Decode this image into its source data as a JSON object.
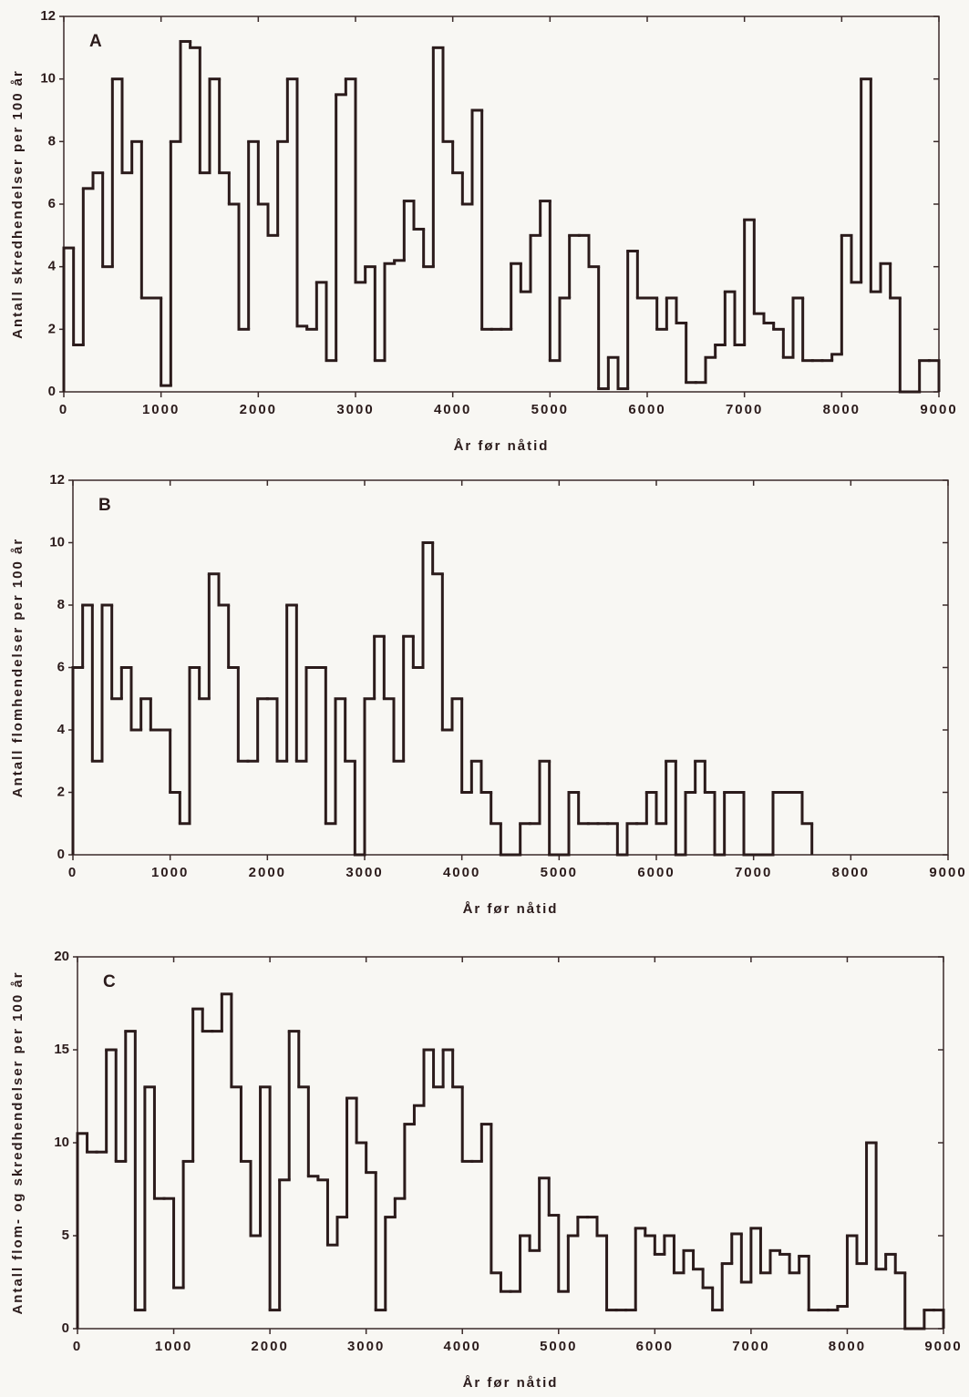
{
  "chart_data": [
    {
      "type": "histogram",
      "title": "A",
      "xlabel": "År før nåtid",
      "ylabel": "Antall skredhendelser per 100 år",
      "color": "#2b1b1b",
      "bins": [
        0,
        100,
        200,
        300,
        400,
        500,
        600,
        700,
        800,
        900,
        1000,
        1100,
        1200,
        1300,
        1400,
        1500,
        1600,
        1700,
        1800,
        1900,
        2000,
        2100,
        2200,
        2300,
        2400,
        2500,
        2600,
        2700,
        2800,
        2900,
        3000,
        3100,
        3200,
        3300,
        3400,
        3500,
        3600,
        3700,
        3800,
        3900,
        4000,
        4100,
        4200,
        4300,
        4400,
        4500,
        4600,
        4700,
        4800,
        4900,
        5000,
        5100,
        5200,
        5300,
        5400,
        5500,
        5600,
        5700,
        5800,
        5900,
        6000,
        6100,
        6200,
        6300,
        6400,
        6500,
        6600,
        6700,
        6800,
        6900,
        7000,
        7100,
        7200,
        7300,
        7400,
        7500,
        7600,
        7700,
        7800,
        7900,
        8000,
        8100,
        8200,
        8300,
        8400,
        8500,
        8600,
        8700,
        8800,
        8900,
        9000
      ],
      "values": [
        4.6,
        1.5,
        6.5,
        7,
        4,
        10,
        7,
        8,
        3,
        3,
        0.2,
        8,
        11.2,
        11,
        7,
        10,
        7,
        6,
        2,
        8,
        6,
        5,
        8,
        10,
        2.1,
        2,
        3.5,
        1,
        9.5,
        10,
        3.5,
        4,
        1,
        4.1,
        4.2,
        6.1,
        5.2,
        4,
        11,
        8,
        7,
        6,
        9,
        2,
        2,
        2,
        4.1,
        3.2,
        5,
        6.1,
        1,
        3,
        5,
        5,
        4,
        0.1,
        1.1,
        0.1,
        4.5,
        3,
        3,
        2,
        3,
        2.2,
        0.3,
        0.3,
        1.1,
        1.5,
        3.2,
        1.5,
        5.5,
        2.5,
        2.2,
        2,
        1.1,
        3,
        1,
        1,
        1,
        1.2,
        5,
        3.5,
        10,
        3.2,
        4.1,
        3,
        0,
        0,
        1,
        1
      ],
      "xlim": [
        0,
        9000
      ],
      "xticks": [
        0,
        1000,
        2000,
        3000,
        4000,
        5000,
        6000,
        7000,
        8000,
        9000
      ],
      "ylim": [
        0,
        12
      ],
      "yticks": [
        0,
        2,
        4,
        6,
        8,
        10,
        12
      ]
    },
    {
      "type": "histogram",
      "title": "B",
      "xlabel": "År før nåtid",
      "ylabel": "Antall flomhendelser per 100 år",
      "color": "#2b1b1b",
      "bins": [
        0,
        100,
        200,
        300,
        400,
        500,
        600,
        700,
        800,
        900,
        1000,
        1100,
        1200,
        1300,
        1400,
        1500,
        1600,
        1700,
        1800,
        1900,
        2000,
        2100,
        2200,
        2300,
        2400,
        2500,
        2600,
        2700,
        2800,
        2900,
        3000,
        3100,
        3200,
        3300,
        3400,
        3500,
        3600,
        3700,
        3800,
        3900,
        4000,
        4100,
        4200,
        4300,
        4400,
        4500,
        4600,
        4700,
        4800,
        4900,
        5000,
        5100,
        5200,
        5300,
        5400,
        5500,
        5600,
        5700,
        5800,
        5900,
        6000,
        6100,
        6200,
        6300,
        6400,
        6500,
        6600,
        6700,
        6800,
        6900,
        7000,
        7100,
        7200,
        7300,
        7400,
        7500,
        7600
      ],
      "values": [
        6,
        8,
        3,
        8,
        5,
        6,
        4,
        5,
        4,
        4,
        2,
        1,
        6,
        5,
        9,
        8,
        6,
        3,
        3,
        5,
        5,
        3,
        8,
        3,
        6,
        6,
        1,
        5,
        3,
        0,
        5,
        7,
        5,
        3,
        7,
        6,
        10,
        9,
        4,
        5,
        2,
        3,
        2,
        1,
        0,
        0,
        1,
        1,
        3,
        0,
        0,
        2,
        1,
        1,
        1,
        1,
        0,
        1,
        1,
        2,
        1,
        3,
        0,
        2,
        3,
        2,
        0,
        2,
        2,
        0,
        0,
        0,
        2,
        2,
        2,
        1
      ],
      "xlim": [
        0,
        9000
      ],
      "xticks": [
        0,
        1000,
        2000,
        3000,
        4000,
        5000,
        6000,
        7000,
        8000,
        9000
      ],
      "ylim": [
        0,
        12
      ],
      "yticks": [
        0,
        2,
        4,
        6,
        8,
        10,
        12
      ]
    },
    {
      "type": "histogram",
      "title": "C",
      "xlabel": "År før nåtid",
      "ylabel": "Antall flom- og skredhendelser per 100 år",
      "color": "#2b1b1b",
      "bins": [
        0,
        100,
        200,
        300,
        400,
        500,
        600,
        700,
        800,
        900,
        1000,
        1100,
        1200,
        1300,
        1400,
        1500,
        1600,
        1700,
        1800,
        1900,
        2000,
        2100,
        2200,
        2300,
        2400,
        2500,
        2600,
        2700,
        2800,
        2900,
        3000,
        3100,
        3200,
        3300,
        3400,
        3500,
        3600,
        3700,
        3800,
        3900,
        4000,
        4100,
        4200,
        4300,
        4400,
        4500,
        4600,
        4700,
        4800,
        4900,
        5000,
        5100,
        5200,
        5300,
        5400,
        5500,
        5600,
        5700,
        5800,
        5900,
        6000,
        6100,
        6200,
        6300,
        6400,
        6500,
        6600,
        6700,
        6800,
        6900,
        7000,
        7100,
        7200,
        7300,
        7400,
        7500,
        7600,
        7700,
        7800,
        7900,
        8000,
        8100,
        8200,
        8300,
        8400,
        8500,
        8600,
        8700,
        8800,
        8900,
        9000
      ],
      "values": [
        10.5,
        9.5,
        9.5,
        15,
        9,
        16,
        1,
        13,
        7,
        7,
        2.2,
        9,
        17.2,
        16,
        16,
        18,
        13,
        9,
        5,
        13,
        1,
        8,
        16,
        13,
        8.2,
        8,
        4.5,
        6,
        12.4,
        10,
        8.4,
        1,
        6,
        7,
        11,
        12,
        15,
        13,
        15,
        13,
        9,
        9,
        11,
        3,
        2,
        2,
        5,
        4.2,
        8.1,
        6.1,
        2,
        5,
        6,
        6,
        5,
        1,
        1,
        1,
        5.4,
        5,
        4,
        5,
        3,
        4.2,
        3.2,
        2.2,
        1,
        3.5,
        5.1,
        2.5,
        5.4,
        3,
        4.2,
        4,
        3,
        3.9,
        1,
        1,
        1,
        1.2,
        5,
        3.5,
        10,
        3.2,
        4,
        3,
        0,
        0,
        1,
        1
      ],
      "xlim": [
        0,
        9000
      ],
      "xticks": [
        0,
        1000,
        2000,
        3000,
        4000,
        5000,
        6000,
        7000,
        8000,
        9000
      ],
      "ylim": [
        0,
        20
      ],
      "yticks": [
        0,
        5,
        10,
        15,
        20
      ]
    }
  ]
}
